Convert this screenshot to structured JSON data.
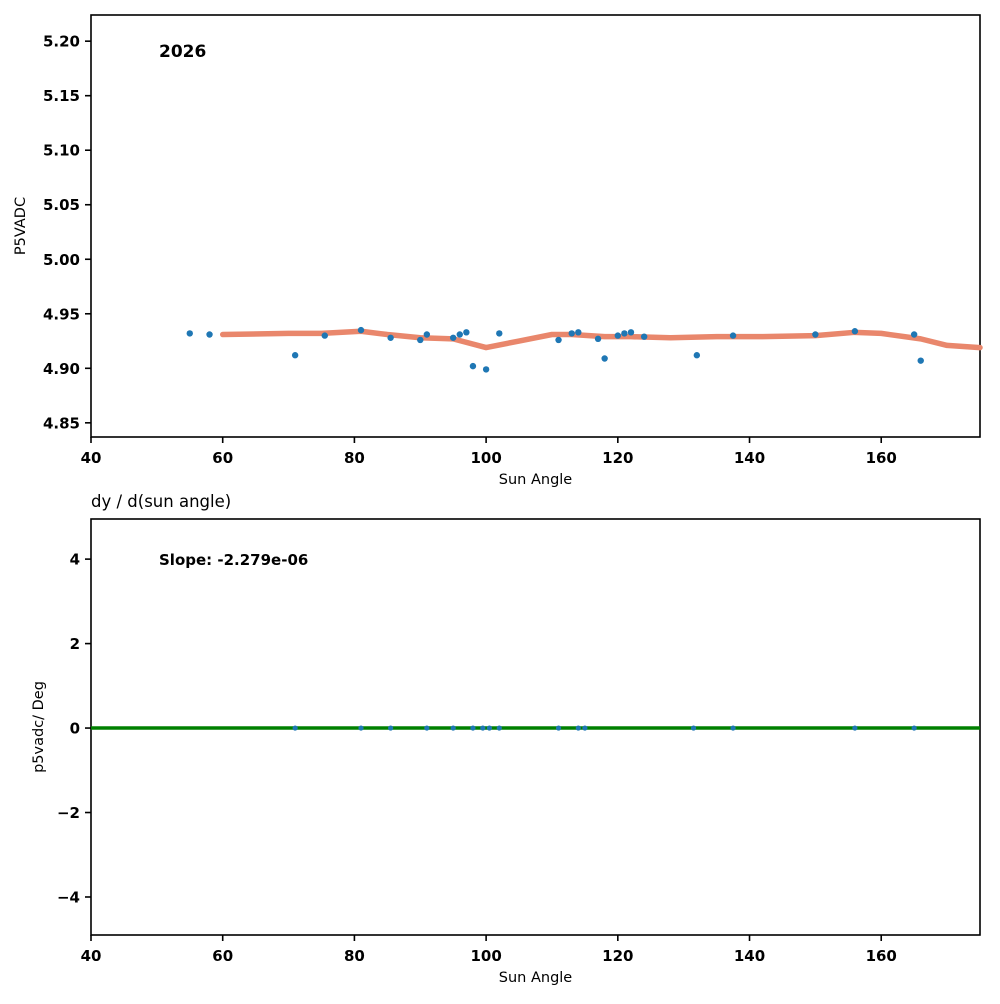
{
  "figure": {
    "background": "#ffffff",
    "point_color": "#1f77b4",
    "trend_color": "#e9876c",
    "zero_line_color": "#008000"
  },
  "chart_data": [
    {
      "type": "scatter",
      "title": "2026",
      "xlabel": "Sun Angle",
      "ylabel": "P5VADC",
      "xlim": [
        40,
        175
      ],
      "ylim": [
        4.837,
        5.224
      ],
      "xticks": [
        40,
        60,
        80,
        100,
        120,
        140,
        160
      ],
      "xtick_labels": [
        "40",
        "60",
        "80",
        "100",
        "120",
        "140",
        "160"
      ],
      "yticks": [
        4.85,
        4.9,
        4.95,
        5.0,
        5.05,
        5.1,
        5.15,
        5.2
      ],
      "ytick_labels": [
        "4.85",
        "4.90",
        "4.95",
        "5.00",
        "5.05",
        "5.10",
        "5.15",
        "5.20"
      ],
      "grid": false,
      "legend": null,
      "points": [
        [
          55,
          4.932
        ],
        [
          58,
          4.931
        ],
        [
          71,
          4.912
        ],
        [
          75.5,
          4.93
        ],
        [
          81,
          4.935
        ],
        [
          85.5,
          4.928
        ],
        [
          90,
          4.926
        ],
        [
          91,
          4.931
        ],
        [
          95,
          4.928
        ],
        [
          96,
          4.931
        ],
        [
          97,
          4.933
        ],
        [
          98,
          4.902
        ],
        [
          100,
          4.899
        ],
        [
          102,
          4.932
        ],
        [
          111,
          4.926
        ],
        [
          113,
          4.932
        ],
        [
          114,
          4.933
        ],
        [
          117,
          4.927
        ],
        [
          118,
          4.909
        ],
        [
          120,
          4.93
        ],
        [
          121,
          4.932
        ],
        [
          122,
          4.933
        ],
        [
          124,
          4.929
        ],
        [
          132,
          4.912
        ],
        [
          137.5,
          4.93
        ],
        [
          150,
          4.931
        ],
        [
          156,
          4.934
        ],
        [
          165,
          4.931
        ],
        [
          166,
          4.907
        ]
      ],
      "trend_line": [
        [
          60,
          4.931
        ],
        [
          70,
          4.932
        ],
        [
          75,
          4.932
        ],
        [
          81,
          4.934
        ],
        [
          85,
          4.931
        ],
        [
          90,
          4.928
        ],
        [
          95,
          4.927
        ],
        [
          100,
          4.919
        ],
        [
          105,
          4.925
        ],
        [
          110,
          4.931
        ],
        [
          113,
          4.931
        ],
        [
          118,
          4.929
        ],
        [
          122,
          4.929
        ],
        [
          128,
          4.928
        ],
        [
          135,
          4.929
        ],
        [
          142,
          4.929
        ],
        [
          150,
          4.93
        ],
        [
          156,
          4.933
        ],
        [
          160,
          4.932
        ],
        [
          166,
          4.927
        ],
        [
          170,
          4.921
        ],
        [
          175,
          4.919
        ]
      ]
    },
    {
      "type": "scatter",
      "title": "dy / d(sun angle)",
      "annotation": "Slope: -2.279e-06",
      "xlabel": "Sun Angle",
      "ylabel": "p5vadc/ Deg",
      "xlim": [
        40,
        175
      ],
      "ylim": [
        -4.9,
        4.95
      ],
      "xticks": [
        40,
        60,
        80,
        100,
        120,
        140,
        160
      ],
      "xtick_labels": [
        "40",
        "60",
        "80",
        "100",
        "120",
        "140",
        "160"
      ],
      "yticks": [
        -4,
        -2,
        0,
        2,
        4
      ],
      "ytick_labels": [
        "−4",
        "−2",
        "0",
        "2",
        "4"
      ],
      "grid": false,
      "legend": null,
      "zero_line_y": 0,
      "points": [
        [
          71,
          0
        ],
        [
          81,
          0
        ],
        [
          85.5,
          0
        ],
        [
          91,
          0
        ],
        [
          95,
          0
        ],
        [
          98,
          0
        ],
        [
          99.5,
          0
        ],
        [
          100.5,
          0
        ],
        [
          102,
          0
        ],
        [
          111,
          0
        ],
        [
          114,
          0
        ],
        [
          115,
          0
        ],
        [
          131.5,
          0
        ],
        [
          137.5,
          0
        ],
        [
          156,
          0
        ],
        [
          165,
          0
        ]
      ]
    }
  ]
}
